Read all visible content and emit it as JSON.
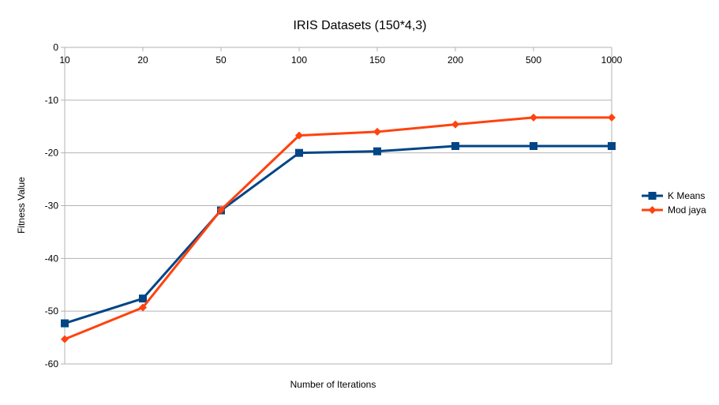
{
  "chart_data": {
    "type": "line",
    "title": "IRIS Datasets (150*4,3)",
    "xlabel": "Number of Iterations",
    "ylabel": "Fitness Value",
    "categories": [
      "10",
      "20",
      "50",
      "100",
      "150",
      "200",
      "500",
      "1000"
    ],
    "ylim": [
      -60,
      0
    ],
    "yticks": [
      0,
      -10,
      -20,
      -30,
      -40,
      -50,
      -60
    ],
    "grid": true,
    "legend_position": "right",
    "series": [
      {
        "name": "K Means",
        "color": "#004586",
        "marker": "square",
        "values": [
          -52.3,
          -47.6,
          -30.9,
          -20.0,
          -19.7,
          -18.7,
          -18.7,
          -18.7
        ]
      },
      {
        "name": "Mod jaya",
        "color": "#ff420e",
        "marker": "diamond",
        "values": [
          -55.3,
          -49.3,
          -30.8,
          -16.7,
          -16.0,
          -14.6,
          -13.3,
          -13.3
        ]
      }
    ]
  }
}
